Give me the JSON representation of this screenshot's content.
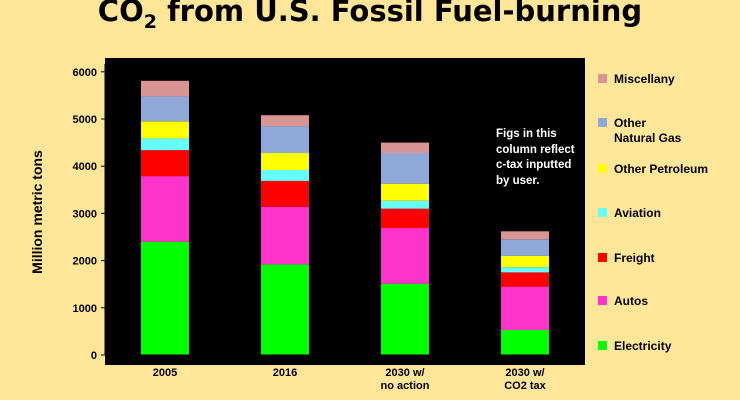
{
  "chart_data": {
    "type": "bar",
    "stacked": true,
    "title_main": "CO",
    "title_sub": "2",
    "title_rest": " from U.S. Fossil Fuel-burning",
    "ylabel": "Million metric tons",
    "ylim": [
      0,
      6000
    ],
    "yticks": [
      "0",
      "1000",
      "2000",
      "3000",
      "4000",
      "5000",
      "6000"
    ],
    "categories": [
      "2005",
      "2016",
      "2030 w/\nno action",
      "2030 w/\nCO2 tax"
    ],
    "series": [
      {
        "name": "Electricity",
        "color": "#00ff00",
        "values": [
          2400,
          1920,
          1510,
          530
        ]
      },
      {
        "name": "Autos",
        "color": "#ff33cc",
        "values": [
          1390,
          1220,
          1180,
          920
        ]
      },
      {
        "name": "Freight",
        "color": "#ff0000",
        "values": [
          550,
          550,
          410,
          300
        ]
      },
      {
        "name": "Aviation",
        "color": "#66ffff",
        "values": [
          250,
          230,
          170,
          110
        ]
      },
      {
        "name": "Other Petroleum",
        "color": "#ffff00",
        "values": [
          360,
          360,
          360,
          240
        ]
      },
      {
        "name": "Other\nNatural Gas",
        "color": "#8fa8d8",
        "values": [
          530,
          570,
          650,
          350
        ]
      },
      {
        "name": "Miscellany",
        "color": "#d99594",
        "values": [
          330,
          230,
          220,
          170
        ]
      }
    ],
    "legend_position": "right",
    "annotation": "Figs in this column reflect c-tax inputted by user.",
    "plot_background": "#000000",
    "grid": false
  }
}
